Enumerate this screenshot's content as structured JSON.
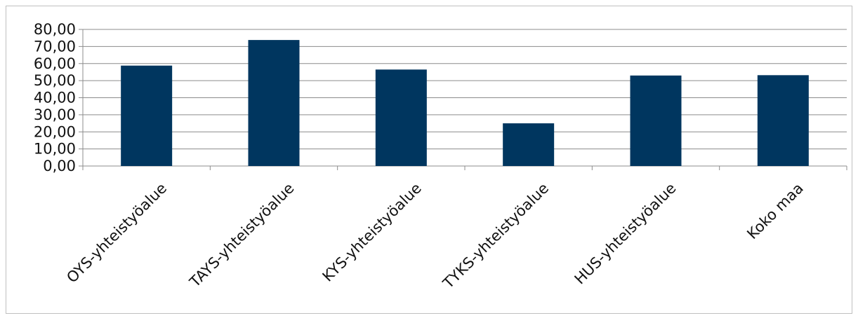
{
  "chart_data": {
    "type": "bar",
    "categories": [
      "OYS-yhteistyöalue",
      "TAYS-yhteistyöalue",
      "KYS-yhteistyöalue",
      "TYKS-yhteistyöalue",
      "HUS-yhteistyöalue",
      "Koko maa"
    ],
    "values": [
      58.8,
      73.8,
      56.5,
      25.0,
      53.0,
      53.2
    ],
    "ylim": [
      0,
      80
    ],
    "yticks": [
      "0,00",
      "10,00",
      "20,00",
      "30,00",
      "40,00",
      "50,00",
      "60,00",
      "70,00",
      "80,00"
    ],
    "bar_color": "#00365f",
    "grid": true,
    "legend": "none"
  }
}
